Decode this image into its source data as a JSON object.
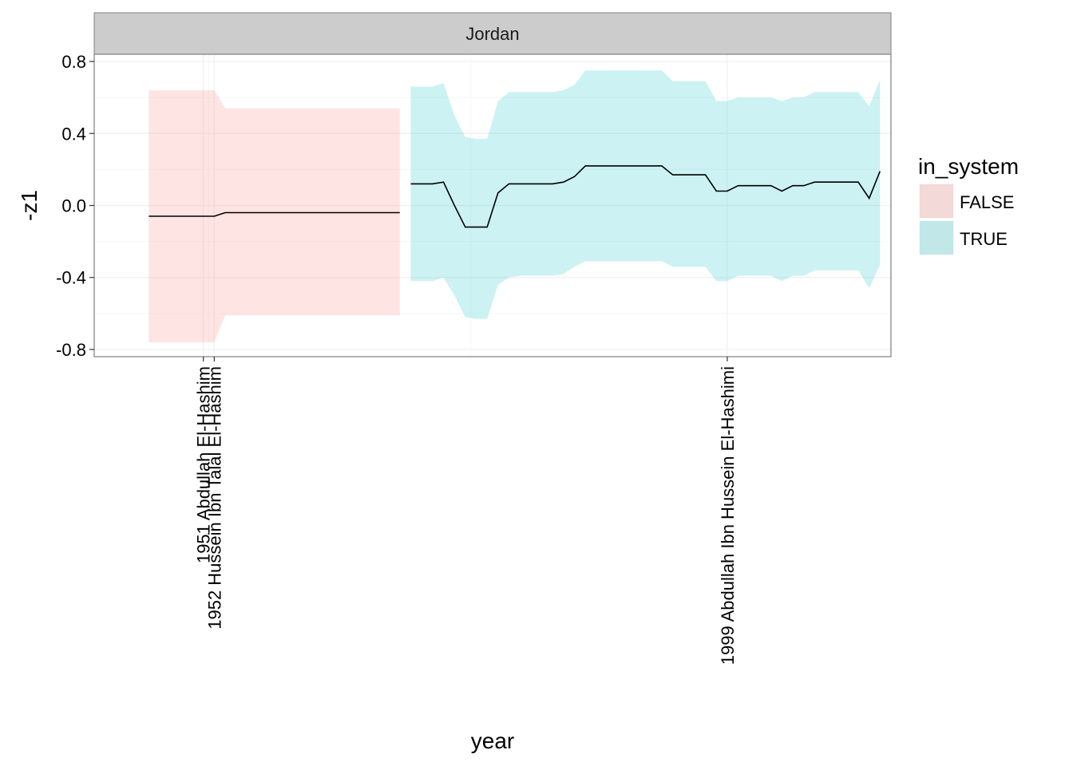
{
  "chart_data": {
    "type": "area",
    "panel": "Jordan",
    "xlabel": "year",
    "ylabel": "-z1",
    "xlim": [
      1941,
      2014
    ],
    "ylim": [
      -0.84,
      0.84
    ],
    "yticks": [
      -0.8,
      -0.4,
      0.0,
      0.4,
      0.8
    ],
    "ytick_labels": [
      "-0.8",
      "-0.4",
      "0.0",
      "0.4",
      "0.8"
    ],
    "xticks": [
      {
        "x": 1951,
        "label": "1951 Abdullah El-Hashim"
      },
      {
        "x": 1952,
        "label": "1952 Hussein Ibn Talal El-Hashim"
      },
      {
        "x": 1999,
        "label": "1999 Abdullah Ibn Hussein El-Hashimi"
      }
    ],
    "grid": true,
    "legend": {
      "title": "in_system",
      "position": "right",
      "entries": [
        {
          "label": "FALSE",
          "color": "#F8766D"
        },
        {
          "label": "TRUE",
          "color": "#00BFC4"
        }
      ]
    },
    "series": [
      {
        "name": "FALSE",
        "color": "#F8766D",
        "x": [
          1946,
          1947,
          1948,
          1949,
          1950,
          1951,
          1952,
          1953,
          1954,
          1955,
          1956,
          1957,
          1958,
          1959,
          1960,
          1961,
          1962,
          1963,
          1964,
          1965,
          1966,
          1967,
          1968,
          1969
        ],
        "y": [
          -0.06,
          -0.06,
          -0.06,
          -0.06,
          -0.06,
          -0.06,
          -0.06,
          -0.04,
          -0.04,
          -0.04,
          -0.04,
          -0.04,
          -0.04,
          -0.04,
          -0.04,
          -0.04,
          -0.04,
          -0.04,
          -0.04,
          -0.04,
          -0.04,
          -0.04,
          -0.04,
          -0.04
        ],
        "lower": [
          -0.76,
          -0.76,
          -0.76,
          -0.76,
          -0.76,
          -0.76,
          -0.76,
          -0.61,
          -0.61,
          -0.61,
          -0.61,
          -0.61,
          -0.61,
          -0.61,
          -0.61,
          -0.61,
          -0.61,
          -0.61,
          -0.61,
          -0.61,
          -0.61,
          -0.61,
          -0.61,
          -0.61
        ],
        "upper": [
          0.64,
          0.64,
          0.64,
          0.64,
          0.64,
          0.64,
          0.64,
          0.54,
          0.54,
          0.54,
          0.54,
          0.54,
          0.54,
          0.54,
          0.54,
          0.54,
          0.54,
          0.54,
          0.54,
          0.54,
          0.54,
          0.54,
          0.54,
          0.54
        ]
      },
      {
        "name": "TRUE",
        "color": "#00BFC4",
        "x": [
          1970,
          1971,
          1972,
          1973,
          1974,
          1975,
          1976,
          1977,
          1978,
          1979,
          1980,
          1981,
          1982,
          1983,
          1984,
          1985,
          1986,
          1987,
          1988,
          1989,
          1990,
          1991,
          1992,
          1993,
          1994,
          1995,
          1996,
          1997,
          1998,
          1999,
          2000,
          2001,
          2002,
          2003,
          2004,
          2005,
          2006,
          2007,
          2008,
          2009,
          2010,
          2011,
          2012,
          2013
        ],
        "y": [
          0.12,
          0.12,
          0.12,
          0.13,
          0.0,
          -0.12,
          -0.12,
          -0.12,
          0.07,
          0.12,
          0.12,
          0.12,
          0.12,
          0.12,
          0.13,
          0.16,
          0.22,
          0.22,
          0.22,
          0.22,
          0.22,
          0.22,
          0.22,
          0.22,
          0.17,
          0.17,
          0.17,
          0.17,
          0.08,
          0.08,
          0.11,
          0.11,
          0.11,
          0.11,
          0.08,
          0.11,
          0.11,
          0.13,
          0.13,
          0.13,
          0.13,
          0.13,
          0.04,
          0.19
        ],
        "lower": [
          -0.42,
          -0.42,
          -0.42,
          -0.4,
          -0.5,
          -0.62,
          -0.63,
          -0.63,
          -0.44,
          -0.4,
          -0.39,
          -0.39,
          -0.39,
          -0.39,
          -0.38,
          -0.34,
          -0.31,
          -0.31,
          -0.31,
          -0.31,
          -0.31,
          -0.31,
          -0.31,
          -0.31,
          -0.34,
          -0.34,
          -0.34,
          -0.34,
          -0.42,
          -0.42,
          -0.39,
          -0.39,
          -0.39,
          -0.39,
          -0.42,
          -0.39,
          -0.39,
          -0.36,
          -0.36,
          -0.36,
          -0.36,
          -0.36,
          -0.46,
          -0.33
        ],
        "upper": [
          0.66,
          0.66,
          0.66,
          0.68,
          0.5,
          0.38,
          0.37,
          0.37,
          0.58,
          0.63,
          0.63,
          0.63,
          0.63,
          0.63,
          0.64,
          0.67,
          0.75,
          0.75,
          0.75,
          0.75,
          0.75,
          0.75,
          0.75,
          0.75,
          0.69,
          0.69,
          0.69,
          0.69,
          0.58,
          0.58,
          0.6,
          0.6,
          0.6,
          0.6,
          0.58,
          0.6,
          0.6,
          0.63,
          0.63,
          0.63,
          0.63,
          0.63,
          0.55,
          0.7
        ]
      }
    ]
  }
}
